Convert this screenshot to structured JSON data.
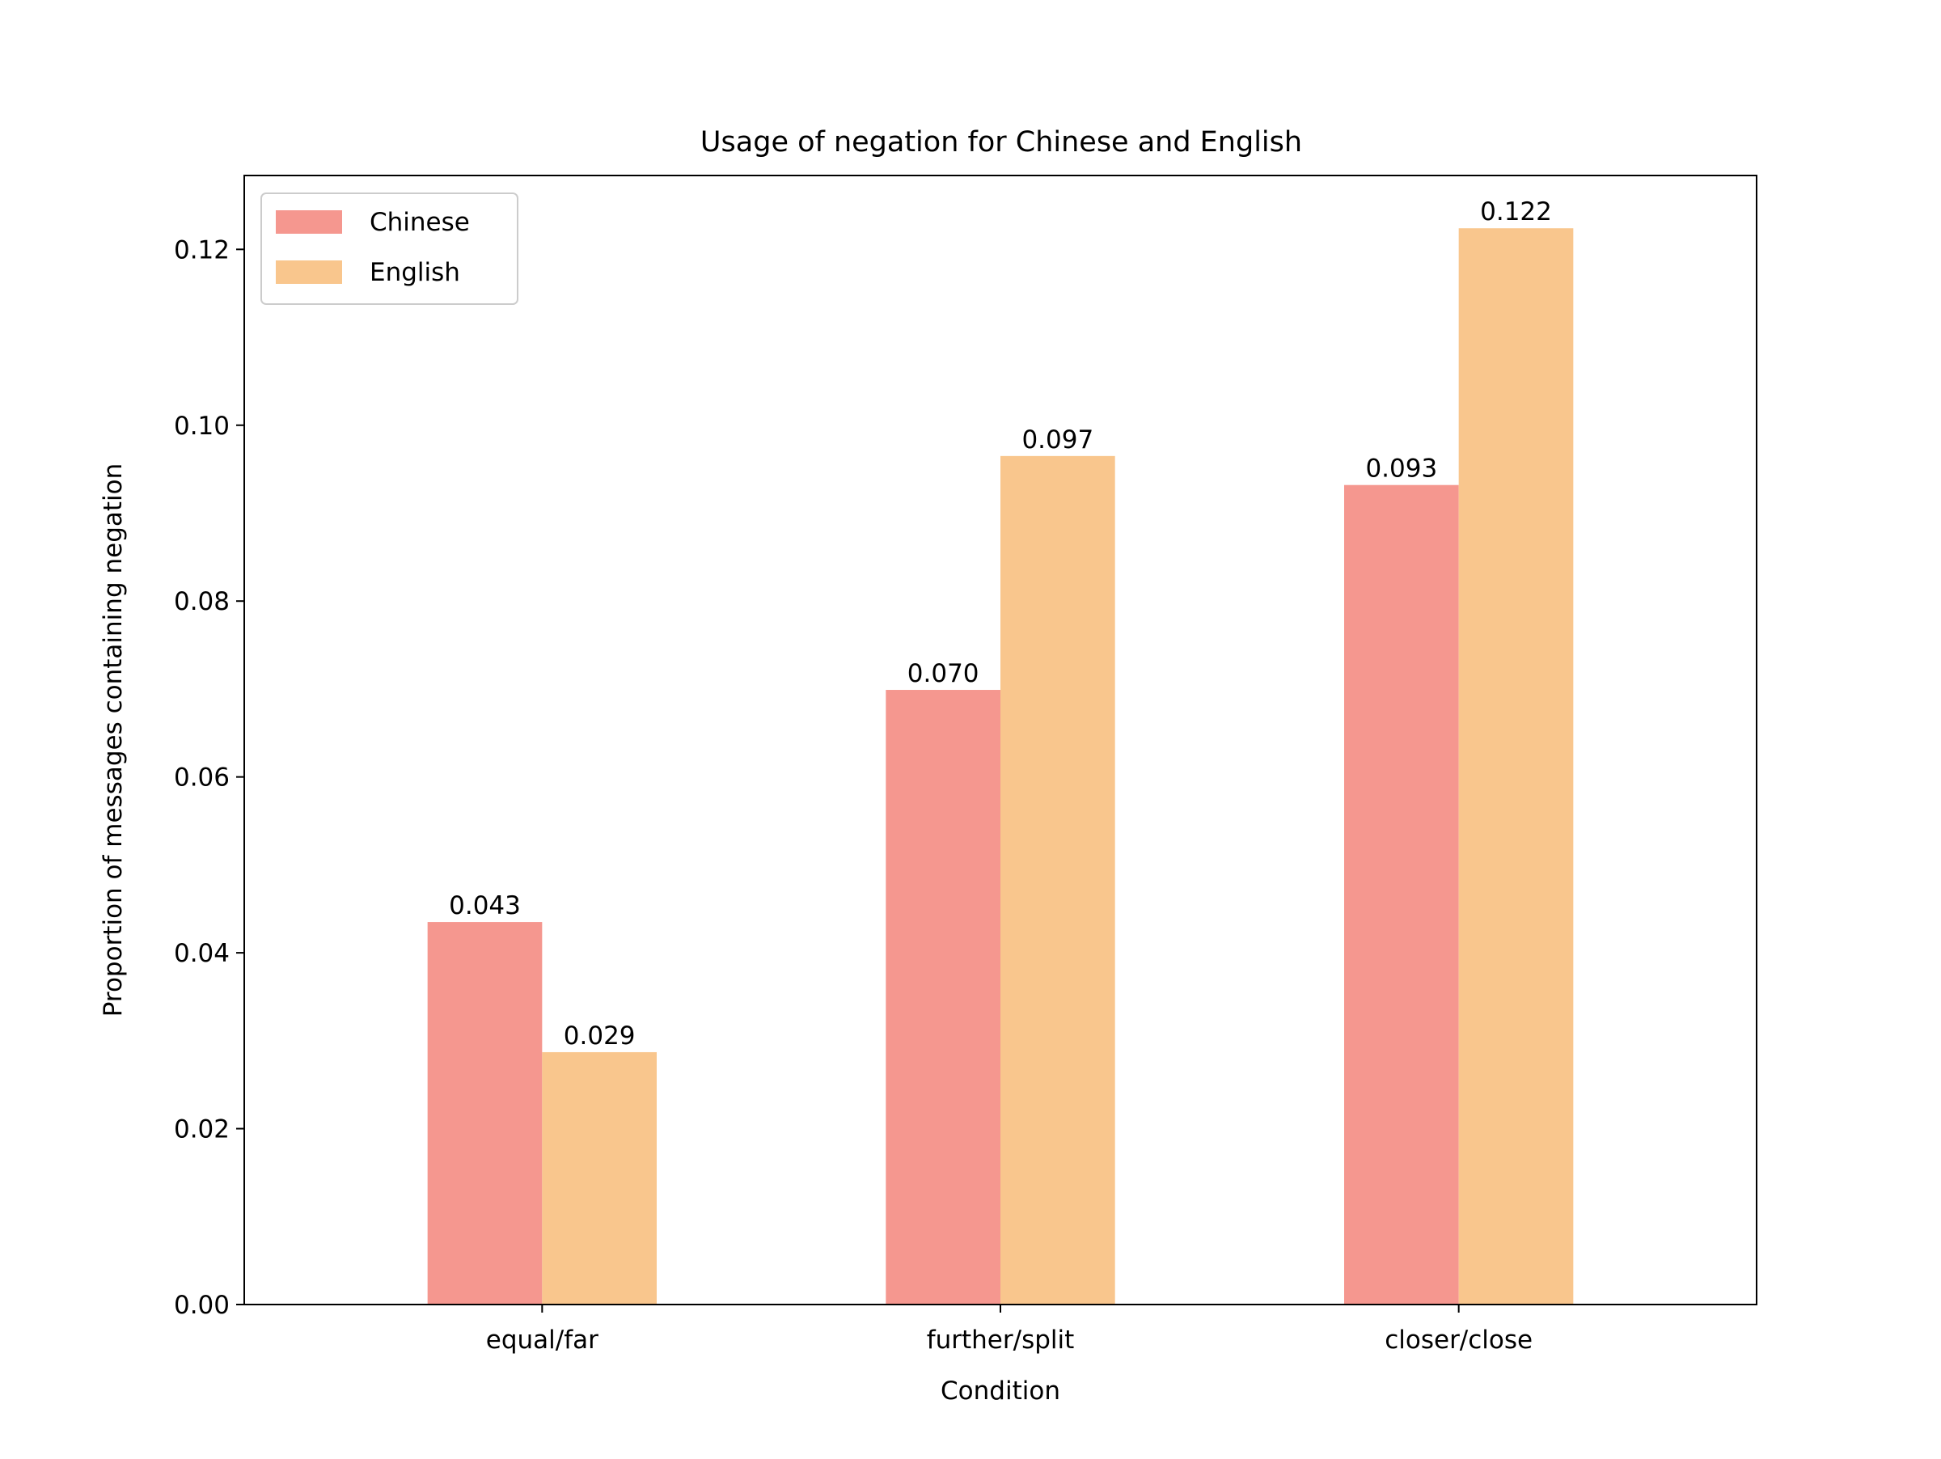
{
  "chart_data": {
    "type": "bar",
    "title": "Usage of negation for Chinese and English",
    "xlabel": "Condition",
    "ylabel": "Proportion of messages containing negation",
    "categories": [
      "equal/far",
      "further/split",
      "closer/close"
    ],
    "series": [
      {
        "name": "Chinese",
        "color": "#f5978f",
        "values": [
          0.0435,
          0.0699,
          0.0932
        ],
        "labels": [
          "0.043",
          "0.070",
          "0.093"
        ]
      },
      {
        "name": "English",
        "color": "#f9c68d",
        "values": [
          0.0287,
          0.0965,
          0.1224
        ],
        "labels": [
          "0.029",
          "0.097",
          "0.122"
        ]
      }
    ],
    "ylim": [
      0,
      0.1284
    ],
    "yticks": [
      "0.00",
      "0.02",
      "0.04",
      "0.06",
      "0.08",
      "0.10",
      "0.12"
    ],
    "ytick_values": [
      0,
      0.02,
      0.04,
      0.06,
      0.08,
      0.1,
      0.12
    ],
    "grid": false,
    "legend_position": "top-left"
  }
}
